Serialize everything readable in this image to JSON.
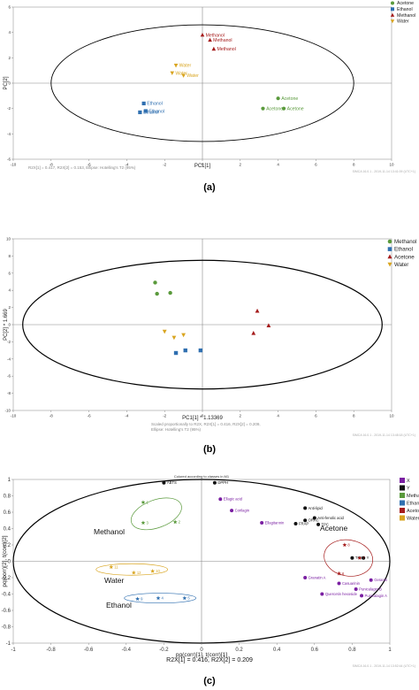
{
  "panels": [
    {
      "caption": "(a)",
      "footer": "R2X[1] = 0.417, R2X[2] = 0.153, Ellipse: Hotelling's T2 (95%)",
      "watermark": "SIMCA 16.0.1 - 2019-11-14 13:41:09 (UTC+1)",
      "chart_data": {
        "type": "scatter",
        "title": "",
        "xlabel": "PC1[1]",
        "ylabel": "PC[2]",
        "xlim": [
          -10,
          10
        ],
        "ylim": [
          -6,
          6
        ],
        "xticks": [
          -10,
          -8,
          -6,
          -4,
          -2,
          0,
          2,
          4,
          6,
          8,
          10
        ],
        "yticks": [
          -6,
          -4,
          -2,
          0,
          2,
          4,
          6
        ],
        "grid": false,
        "legend": "top-right",
        "series": [
          {
            "name": "Acetone",
            "color": "#5a9a3c",
            "marker": "circle",
            "points": [
              {
                "x": 4.0,
                "y": -1.2,
                "label": "Acetone"
              },
              {
                "x": 3.2,
                "y": -2.0,
                "label": "Acetone"
              },
              {
                "x": 4.3,
                "y": -2.0,
                "label": "Acetone"
              }
            ]
          },
          {
            "name": "Ethanol",
            "color": "#2f6fb0",
            "marker": "square",
            "points": [
              {
                "x": -3.1,
                "y": -1.6,
                "label": "Ethanol"
              },
              {
                "x": -3.3,
                "y": -2.3,
                "label": "Ethanol"
              },
              {
                "x": -3.0,
                "y": -2.2,
                "label": "Ethanol"
              }
            ]
          },
          {
            "name": "Methanol",
            "color": "#a51c1c",
            "marker": "triangle",
            "points": [
              {
                "x": 0.0,
                "y": 3.8,
                "label": "Methanol"
              },
              {
                "x": 0.4,
                "y": 3.4,
                "label": "Methanol"
              },
              {
                "x": 0.6,
                "y": 2.7,
                "label": "Methanol"
              }
            ]
          },
          {
            "name": "Water",
            "color": "#d9a520",
            "marker": "triangle-down",
            "points": [
              {
                "x": -1.4,
                "y": 1.4,
                "label": "Water"
              },
              {
                "x": -1.6,
                "y": 0.8,
                "label": "Water"
              },
              {
                "x": -1.0,
                "y": 0.6,
                "label": "Water"
              }
            ]
          }
        ],
        "ellipse": {
          "rx": 8.0,
          "ry": 4.6
        }
      }
    },
    {
      "caption": "(b)",
      "footer_lines": [
        "Scaled proportionally to R2X, R2X[1] = 0.416, R2X[2] = 0.209,",
        "Ellipse: Hotelling's T2 (95%)"
      ],
      "watermark": "SIMCA 16.0.1 - 2019-11-14 13:48:18 (UTC+1)",
      "chart_data": {
        "type": "scatter",
        "title": "",
        "xlabel": "PC1[1] * 1.13369",
        "ylabel": "PC[2] * 1.669",
        "xlim": [
          -10,
          10
        ],
        "ylim": [
          -10,
          10
        ],
        "xticks": [
          -10,
          -8,
          -6,
          -4,
          -2,
          0,
          2,
          4,
          6,
          8,
          10
        ],
        "yticks": [
          -10,
          -8,
          -6,
          -4,
          -2,
          0,
          2,
          4,
          6,
          8,
          10
        ],
        "grid": false,
        "legend": "top-right",
        "series": [
          {
            "name": "Methanol",
            "color": "#5a9a3c",
            "marker": "circle",
            "points": [
              {
                "x": -2.5,
                "y": 4.9
              },
              {
                "x": -2.4,
                "y": 3.6
              },
              {
                "x": -1.7,
                "y": 3.7
              }
            ]
          },
          {
            "name": "Ethanol",
            "color": "#2f6fb0",
            "marker": "square",
            "points": [
              {
                "x": -1.4,
                "y": -3.3
              },
              {
                "x": -0.9,
                "y": -3.0
              },
              {
                "x": -0.1,
                "y": -3.0
              }
            ]
          },
          {
            "name": "Acetone",
            "color": "#a51c1c",
            "marker": "triangle",
            "points": [
              {
                "x": 2.9,
                "y": 1.6
              },
              {
                "x": 3.5,
                "y": -0.1
              },
              {
                "x": 2.7,
                "y": -1.0
              }
            ]
          },
          {
            "name": "Water",
            "color": "#d9a520",
            "marker": "triangle-down",
            "points": [
              {
                "x": -2.0,
                "y": -0.8
              },
              {
                "x": -1.5,
                "y": -1.5
              },
              {
                "x": -1.0,
                "y": -1.2
              }
            ]
          }
        ],
        "ellipse": {
          "rx": 9.5,
          "ry": 7.5
        }
      }
    },
    {
      "caption": "(c)",
      "top_title": "Colored according to classes in M1",
      "footer": "R2X[1] = 0.416, R2X[2] = 0.209",
      "watermark": "SIMCA 16.0.1 - 2019-11-14 13:52:44 (UTC+1)",
      "group_labels": [
        "Methanol",
        "Water",
        "Ethanol",
        "Acetone"
      ],
      "chart_data": {
        "type": "scatter",
        "title": "",
        "xlabel": "pq(corr)[1], t(corr)[1]",
        "ylabel": "pq(corr)[2], t(corr)[2]",
        "xlim": [
          -1,
          1
        ],
        "ylim": [
          -1,
          1
        ],
        "xticks": [
          "-1",
          "-0.8",
          "-0.6",
          "-0.4",
          "-0.2",
          "0",
          "0.2",
          "0.4",
          "0.6",
          "0.8",
          "1"
        ],
        "yticks": [
          "-1",
          "-0.8",
          "-0.6",
          "-0.4",
          "-0.2",
          "0",
          "0.2",
          "0.4",
          "0.6",
          "0.8",
          "1"
        ],
        "grid": false,
        "legend": "top-right",
        "legend_entries": [
          {
            "name": "X",
            "color": "#7a1fa2"
          },
          {
            "name": "Y",
            "color": "#111111"
          },
          {
            "name": "Methanol",
            "color": "#5a9a3c"
          },
          {
            "name": "Ethanol",
            "color": "#2f6fb0"
          },
          {
            "name": "Acetone",
            "color": "#a51c1c"
          },
          {
            "name": "Water",
            "color": "#d9a520"
          }
        ],
        "series": [
          {
            "name": "Y",
            "color": "#111111",
            "marker": "circle",
            "points": [
              {
                "x": -0.2,
                "y": 0.96,
                "label": "ABTS"
              },
              {
                "x": 0.07,
                "y": 0.96,
                "label": "DPPH"
              },
              {
                "x": 0.55,
                "y": 0.65,
                "label": "Anti-lipid"
              },
              {
                "x": 0.6,
                "y": 0.53,
                "label": "Anti-fenolic acid"
              },
              {
                "x": 0.55,
                "y": 0.5,
                "label": "ORAC"
              },
              {
                "x": 0.5,
                "y": 0.46,
                "label": "FRAP"
              },
              {
                "x": 0.62,
                "y": 0.45,
                "label": "TPC"
              },
              {
                "x": 0.8,
                "y": 0.04,
                "label": "TFC"
              },
              {
                "x": 0.86,
                "y": 0.04,
                "label": "Y"
              }
            ]
          },
          {
            "name": "X",
            "color": "#7a1fa2",
            "marker": "circle",
            "points": [
              {
                "x": 0.1,
                "y": 0.76,
                "label": "Ellagic acid"
              },
              {
                "x": 0.16,
                "y": 0.62,
                "label": "Corilagin"
              },
              {
                "x": 0.32,
                "y": 0.47,
                "label": "Ellagitannin"
              },
              {
                "x": 0.55,
                "y": -0.2,
                "label": "Granatin A"
              },
              {
                "x": 0.9,
                "y": -0.23,
                "label": "Geranin"
              },
              {
                "x": 0.73,
                "y": -0.27,
                "label": "Casuarinin"
              },
              {
                "x": 0.82,
                "y": -0.34,
                "label": "Punicalagin B"
              },
              {
                "x": 0.64,
                "y": -0.4,
                "label": "Quercetin hexoside"
              },
              {
                "x": 0.85,
                "y": -0.42,
                "label": "Punicalagin A"
              }
            ]
          },
          {
            "name": "Methanol",
            "color": "#5a9a3c",
            "marker": "star",
            "points": [
              {
                "x": -0.31,
                "y": 0.72,
                "label": "1"
              },
              {
                "x": -0.31,
                "y": 0.47,
                "label": "3"
              },
              {
                "x": -0.14,
                "y": 0.48,
                "label": "2"
              }
            ]
          },
          {
            "name": "Water",
            "color": "#d9a520",
            "marker": "star",
            "points": [
              {
                "x": -0.48,
                "y": -0.07,
                "label": "11"
              },
              {
                "x": -0.36,
                "y": -0.14,
                "label": "12"
              },
              {
                "x": -0.26,
                "y": -0.12,
                "label": "10"
              }
            ]
          },
          {
            "name": "Ethanol",
            "color": "#2f6fb0",
            "marker": "star",
            "points": [
              {
                "x": -0.34,
                "y": -0.46,
                "label": "9"
              },
              {
                "x": -0.23,
                "y": -0.45,
                "label": "4"
              },
              {
                "x": -0.09,
                "y": -0.45,
                "label": "5"
              }
            ]
          },
          {
            "name": "Acetone",
            "color": "#a51c1c",
            "marker": "star",
            "points": [
              {
                "x": 0.76,
                "y": 0.2,
                "label": "8"
              },
              {
                "x": 0.84,
                "y": 0.04,
                "label": "7"
              },
              {
                "x": 0.73,
                "y": -0.15,
                "label": "6"
              }
            ]
          }
        ],
        "ellipse": {
          "rx": 1.0,
          "ry": 1.0
        }
      }
    }
  ]
}
